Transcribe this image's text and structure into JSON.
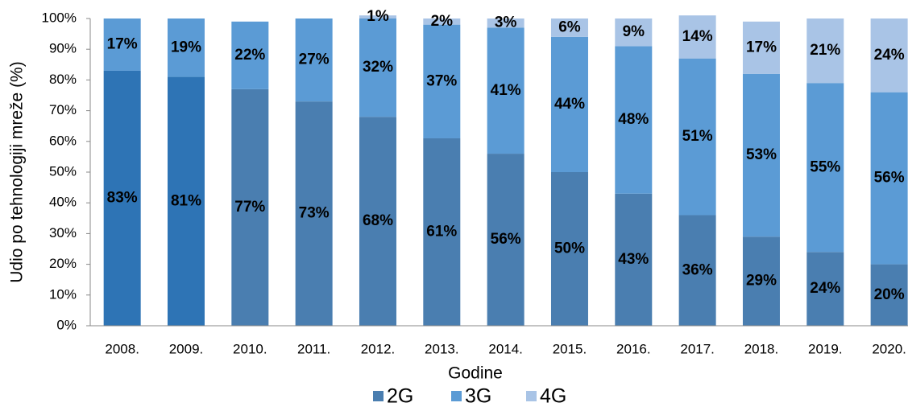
{
  "chart_data": {
    "type": "stacked_bar",
    "ylabel": "Udio po tehnologiji mreže (%)",
    "xlabel": "Godine",
    "categories": [
      "2008.",
      "2009.",
      "2010.",
      "2011.",
      "2012.",
      "2013.",
      "2014.",
      "2015.",
      "2016.",
      "2017.",
      "2018.",
      "2019.",
      "2020."
    ],
    "series": [
      {
        "name": "2G",
        "color": "#4a7eb0",
        "colors": [
          "#2e74b5",
          "#2e74b5",
          "#4a7eb0",
          "#4a7eb0",
          "#4a7eb0",
          "#4a7eb0",
          "#4a7eb0",
          "#4a7eb0",
          "#4a7eb0",
          "#4a7eb0",
          "#4a7eb0",
          "#4a7eb0",
          "#4a7eb0"
        ],
        "values": [
          83,
          81,
          77,
          73,
          68,
          61,
          56,
          50,
          43,
          36,
          29,
          24,
          20
        ],
        "value_labels": [
          "83%",
          "81%",
          "77%",
          "73%",
          "68%",
          "61%",
          "56%",
          "50%",
          "43%",
          "36%",
          "29%",
          "24%",
          "20%"
        ]
      },
      {
        "name": "3G",
        "color": "#5b9bd5",
        "values": [
          17,
          19,
          22,
          27,
          32,
          37,
          41,
          44,
          48,
          51,
          53,
          55,
          56
        ],
        "value_labels": [
          "17%",
          "19%",
          "22%",
          "27%",
          "32%",
          "37%",
          "41%",
          "44%",
          "48%",
          "51%",
          "53%",
          "55%",
          "56%"
        ]
      },
      {
        "name": "4G",
        "color": "#a9c4e6",
        "values": [
          null,
          null,
          null,
          null,
          1,
          2,
          3,
          6,
          9,
          14,
          17,
          21,
          24
        ],
        "value_labels": [
          null,
          null,
          null,
          null,
          "1%",
          "2%",
          "3%",
          "6%",
          "9%",
          "14%",
          "17%",
          "21%",
          "24%"
        ]
      }
    ],
    "ylim": [
      0,
      100
    ],
    "yticks": [
      {
        "value": 0,
        "label": "0%"
      },
      {
        "value": 10,
        "label": "10%"
      },
      {
        "value": 20,
        "label": "20%"
      },
      {
        "value": 30,
        "label": "30%"
      },
      {
        "value": 40,
        "label": "40%"
      },
      {
        "value": 50,
        "label": "50%"
      },
      {
        "value": 60,
        "label": "60%"
      },
      {
        "value": 70,
        "label": "70%"
      },
      {
        "value": 80,
        "label": "80%"
      },
      {
        "value": 90,
        "label": "90%"
      },
      {
        "value": 100,
        "label": "100%"
      }
    ],
    "legend": "bottom"
  }
}
